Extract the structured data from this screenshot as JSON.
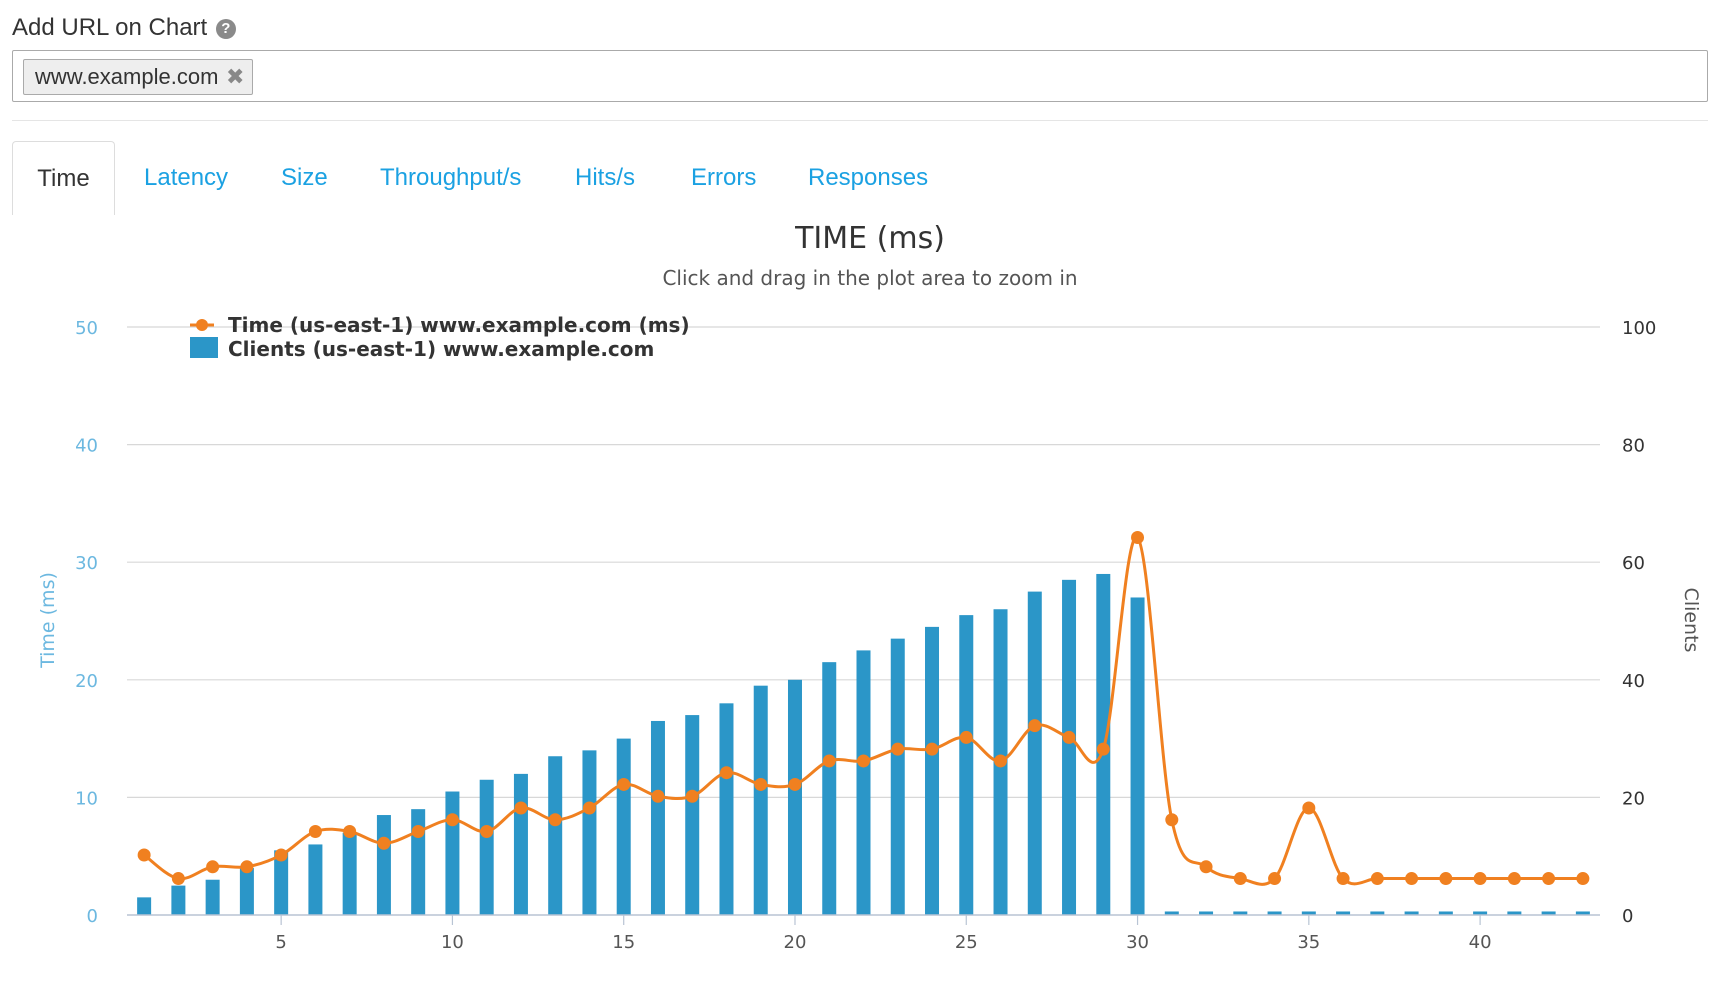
{
  "url_field": {
    "label": "Add URL on Chart",
    "help_icon": "question-circle-icon",
    "chips": [
      {
        "text": "www.example.com",
        "remove_icon": "close-icon"
      }
    ]
  },
  "tabs": [
    {
      "label": "Time",
      "active": true
    },
    {
      "label": "Latency",
      "active": false
    },
    {
      "label": "Size",
      "active": false
    },
    {
      "label": "Throughput/s",
      "active": false
    },
    {
      "label": "Hits/s",
      "active": false
    },
    {
      "label": "Errors",
      "active": false
    },
    {
      "label": "Responses",
      "active": false
    }
  ],
  "colors": {
    "accent": "#1ba1e2",
    "time_series": "#f08020",
    "clients_series": "#2b96c8",
    "grid": "#d8d8d8",
    "left_axis_text": "#6cb8e0"
  },
  "chart_data": {
    "type": "bar",
    "title": "TIME (ms)",
    "subtitle": "Click and drag in the plot area to zoom in",
    "ylabel": "Time (ms)",
    "y2label": "Clients",
    "xlabel": "",
    "xlim": [
      0.5,
      43.5
    ],
    "ylim": [
      0,
      50
    ],
    "y2lim": [
      0,
      100
    ],
    "x_ticks": [
      5,
      10,
      15,
      20,
      25,
      30,
      35,
      40
    ],
    "y_ticks": [
      0,
      10,
      20,
      30,
      40,
      50
    ],
    "y2_ticks": [
      0,
      20,
      40,
      60,
      80,
      100
    ],
    "grid": true,
    "legend_position": "top-left",
    "x": [
      1,
      2,
      3,
      4,
      5,
      6,
      7,
      8,
      9,
      10,
      11,
      12,
      13,
      14,
      15,
      16,
      17,
      18,
      19,
      20,
      21,
      22,
      23,
      24,
      25,
      26,
      27,
      28,
      29,
      30,
      31,
      32,
      33,
      34,
      35,
      36,
      37,
      38,
      39,
      40,
      41,
      42,
      43
    ],
    "series": [
      {
        "name": "Time (us-east-1) www.example.com (ms)",
        "type": "line",
        "axis": "left",
        "values": [
          5.1,
          3.1,
          4.1,
          4.1,
          5.1,
          7.1,
          7.1,
          6.1,
          7.1,
          8.1,
          7.1,
          9.1,
          8.1,
          9.1,
          11.1,
          10.1,
          10.1,
          12.1,
          11.1,
          11.1,
          13.1,
          13.1,
          14.1,
          14.1,
          15.1,
          13.1,
          16.1,
          15.1,
          14.1,
          32.1,
          8.1,
          4.1,
          3.1,
          3.1,
          9.1,
          3.1,
          3.1,
          3.1,
          3.1,
          3.1,
          3.1,
          3.1,
          3.1
        ]
      },
      {
        "name": "Clients (us-east-1) www.example.com",
        "type": "bar",
        "axis": "right",
        "values": [
          3,
          5,
          6,
          8,
          11,
          12,
          14,
          17,
          18,
          21,
          23,
          24,
          27,
          28,
          30,
          33,
          34,
          36,
          39,
          40,
          43,
          45,
          47,
          49,
          51,
          52,
          55,
          57,
          58,
          54,
          0.6,
          0.6,
          0.6,
          0.6,
          0.6,
          0.6,
          0.6,
          0.6,
          0.6,
          0.6,
          0.6,
          0.6,
          0.6
        ]
      }
    ]
  }
}
